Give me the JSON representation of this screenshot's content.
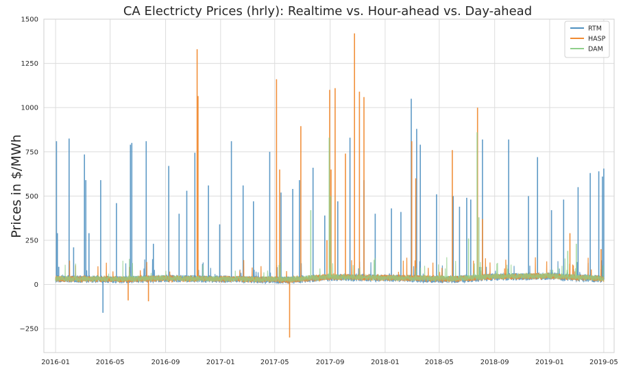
{
  "chart_data": {
    "type": "line",
    "title": "CA Electricty Prices (hrly):  Realtime vs. Hour-ahead vs. Day-ahead",
    "xlabel": "",
    "ylabel": "Prices in $/MWh",
    "x_range": [
      "2015-12-06",
      "2019-05-24"
    ],
    "ylim": [
      -385,
      1500
    ],
    "y_ticks": [
      -250,
      0,
      250,
      500,
      750,
      1000,
      1250,
      1500
    ],
    "y_tick_labels": [
      "−250",
      "0",
      "250",
      "500",
      "750",
      "1000",
      "1250",
      "1500"
    ],
    "x_ticks": [
      "2016-01",
      "2016-05",
      "2016-09",
      "2017-01",
      "2017-05",
      "2017-09",
      "2018-01",
      "2018-05",
      "2018-09",
      "2019-01",
      "2019-05"
    ],
    "grid": true,
    "legend_position": "top-right",
    "series": [
      {
        "name": "RTM",
        "color": "#4c8fc0",
        "base": [
          [
            "2016-01-01",
            30
          ],
          [
            "2016-06-01",
            25
          ],
          [
            "2016-09-01",
            32
          ],
          [
            "2017-01-01",
            28
          ],
          [
            "2017-06-01",
            22
          ],
          [
            "2017-09-01",
            38
          ],
          [
            "2018-01-01",
            34
          ],
          [
            "2018-06-01",
            26
          ],
          [
            "2018-09-01",
            40
          ],
          [
            "2019-01-01",
            45
          ],
          [
            "2019-05-01",
            28
          ]
        ],
        "spikes": [
          [
            "2016-01-03",
            810
          ],
          [
            "2016-01-05",
            290
          ],
          [
            "2016-01-08",
            100
          ],
          [
            "2016-01-31",
            825
          ],
          [
            "2016-02-10",
            210
          ],
          [
            "2016-03-05",
            735
          ],
          [
            "2016-03-08",
            590
          ],
          [
            "2016-03-15",
            290
          ],
          [
            "2016-04-10",
            590
          ],
          [
            "2016-04-15",
            -160
          ],
          [
            "2016-05-15",
            460
          ],
          [
            "2016-06-15",
            790
          ],
          [
            "2016-06-18",
            800
          ],
          [
            "2016-07-20",
            810
          ],
          [
            "2016-08-05",
            230
          ],
          [
            "2016-09-08",
            670
          ],
          [
            "2016-10-01",
            400
          ],
          [
            "2016-10-18",
            530
          ],
          [
            "2016-11-05",
            745
          ],
          [
            "2016-12-05",
            560
          ],
          [
            "2016-12-30",
            340
          ],
          [
            "2017-01-25",
            810
          ],
          [
            "2017-02-20",
            560
          ],
          [
            "2017-03-15",
            470
          ],
          [
            "2017-04-20",
            750
          ],
          [
            "2017-05-15",
            520
          ],
          [
            "2017-06-10",
            540
          ],
          [
            "2017-06-25",
            590
          ],
          [
            "2017-07-25",
            660
          ],
          [
            "2017-08-20",
            390
          ],
          [
            "2017-09-18",
            470
          ],
          [
            "2017-10-15",
            830
          ],
          [
            "2017-11-15",
            590
          ],
          [
            "2017-12-10",
            400
          ],
          [
            "2018-01-15",
            430
          ],
          [
            "2018-02-05",
            410
          ],
          [
            "2018-02-28",
            1050
          ],
          [
            "2018-03-12",
            880
          ],
          [
            "2018-03-20",
            790
          ],
          [
            "2018-04-25",
            510
          ],
          [
            "2018-06-01",
            500
          ],
          [
            "2018-06-15",
            440
          ],
          [
            "2018-07-01",
            490
          ],
          [
            "2018-07-10",
            480
          ],
          [
            "2018-08-05",
            820
          ],
          [
            "2018-10-02",
            820
          ],
          [
            "2018-11-15",
            500
          ],
          [
            "2018-12-05",
            720
          ],
          [
            "2019-01-05",
            420
          ],
          [
            "2019-02-01",
            480
          ],
          [
            "2019-03-05",
            550
          ],
          [
            "2019-04-01",
            630
          ],
          [
            "2019-04-20",
            640
          ],
          [
            "2019-04-28",
            610
          ],
          [
            "2019-05-01",
            655
          ]
        ]
      },
      {
        "name": "HASP",
        "color": "#f08a30",
        "base": [
          [
            "2016-01-01",
            30
          ],
          [
            "2016-06-01",
            28
          ],
          [
            "2016-09-01",
            32
          ],
          [
            "2017-01-01",
            30
          ],
          [
            "2017-06-01",
            25
          ],
          [
            "2017-09-01",
            40
          ],
          [
            "2018-01-01",
            36
          ],
          [
            "2018-06-01",
            30
          ],
          [
            "2018-09-01",
            42
          ],
          [
            "2019-01-01",
            46
          ],
          [
            "2019-05-01",
            30
          ]
        ],
        "spikes": [
          [
            "2016-06-10",
            -90
          ],
          [
            "2016-07-25",
            -95
          ],
          [
            "2016-11-10",
            1330
          ],
          [
            "2016-11-12",
            1065
          ],
          [
            "2017-05-05",
            1160
          ],
          [
            "2017-05-12",
            650
          ],
          [
            "2017-06-03",
            -300
          ],
          [
            "2017-06-28",
            895
          ],
          [
            "2017-08-25",
            250
          ],
          [
            "2017-08-31",
            1100
          ],
          [
            "2017-09-03",
            650
          ],
          [
            "2017-09-12",
            1110
          ],
          [
            "2017-10-05",
            740
          ],
          [
            "2017-10-25",
            1420
          ],
          [
            "2017-11-05",
            1090
          ],
          [
            "2017-11-15",
            1060
          ],
          [
            "2018-03-01",
            810
          ],
          [
            "2018-03-10",
            600
          ],
          [
            "2018-05-30",
            760
          ],
          [
            "2018-07-25",
            1000
          ],
          [
            "2018-08-05",
            370
          ],
          [
            "2019-02-15",
            290
          ],
          [
            "2019-04-25",
            200
          ]
        ]
      },
      {
        "name": "DAM",
        "color": "#8fcf8a",
        "base": [
          [
            "2016-01-01",
            32
          ],
          [
            "2016-06-01",
            30
          ],
          [
            "2016-09-01",
            34
          ],
          [
            "2017-01-01",
            30
          ],
          [
            "2017-06-01",
            28
          ],
          [
            "2017-09-01",
            42
          ],
          [
            "2018-01-01",
            36
          ],
          [
            "2018-06-01",
            32
          ],
          [
            "2018-09-01",
            44
          ],
          [
            "2019-01-01",
            48
          ],
          [
            "2019-05-01",
            32
          ]
        ],
        "spikes": [
          [
            "2017-07-20",
            420
          ],
          [
            "2017-08-30",
            830
          ],
          [
            "2017-09-02",
            500
          ],
          [
            "2018-07-05",
            260
          ],
          [
            "2018-07-24",
            860
          ],
          [
            "2018-07-28",
            380
          ],
          [
            "2019-02-10",
            190
          ],
          [
            "2019-03-01",
            230
          ]
        ]
      }
    ]
  }
}
